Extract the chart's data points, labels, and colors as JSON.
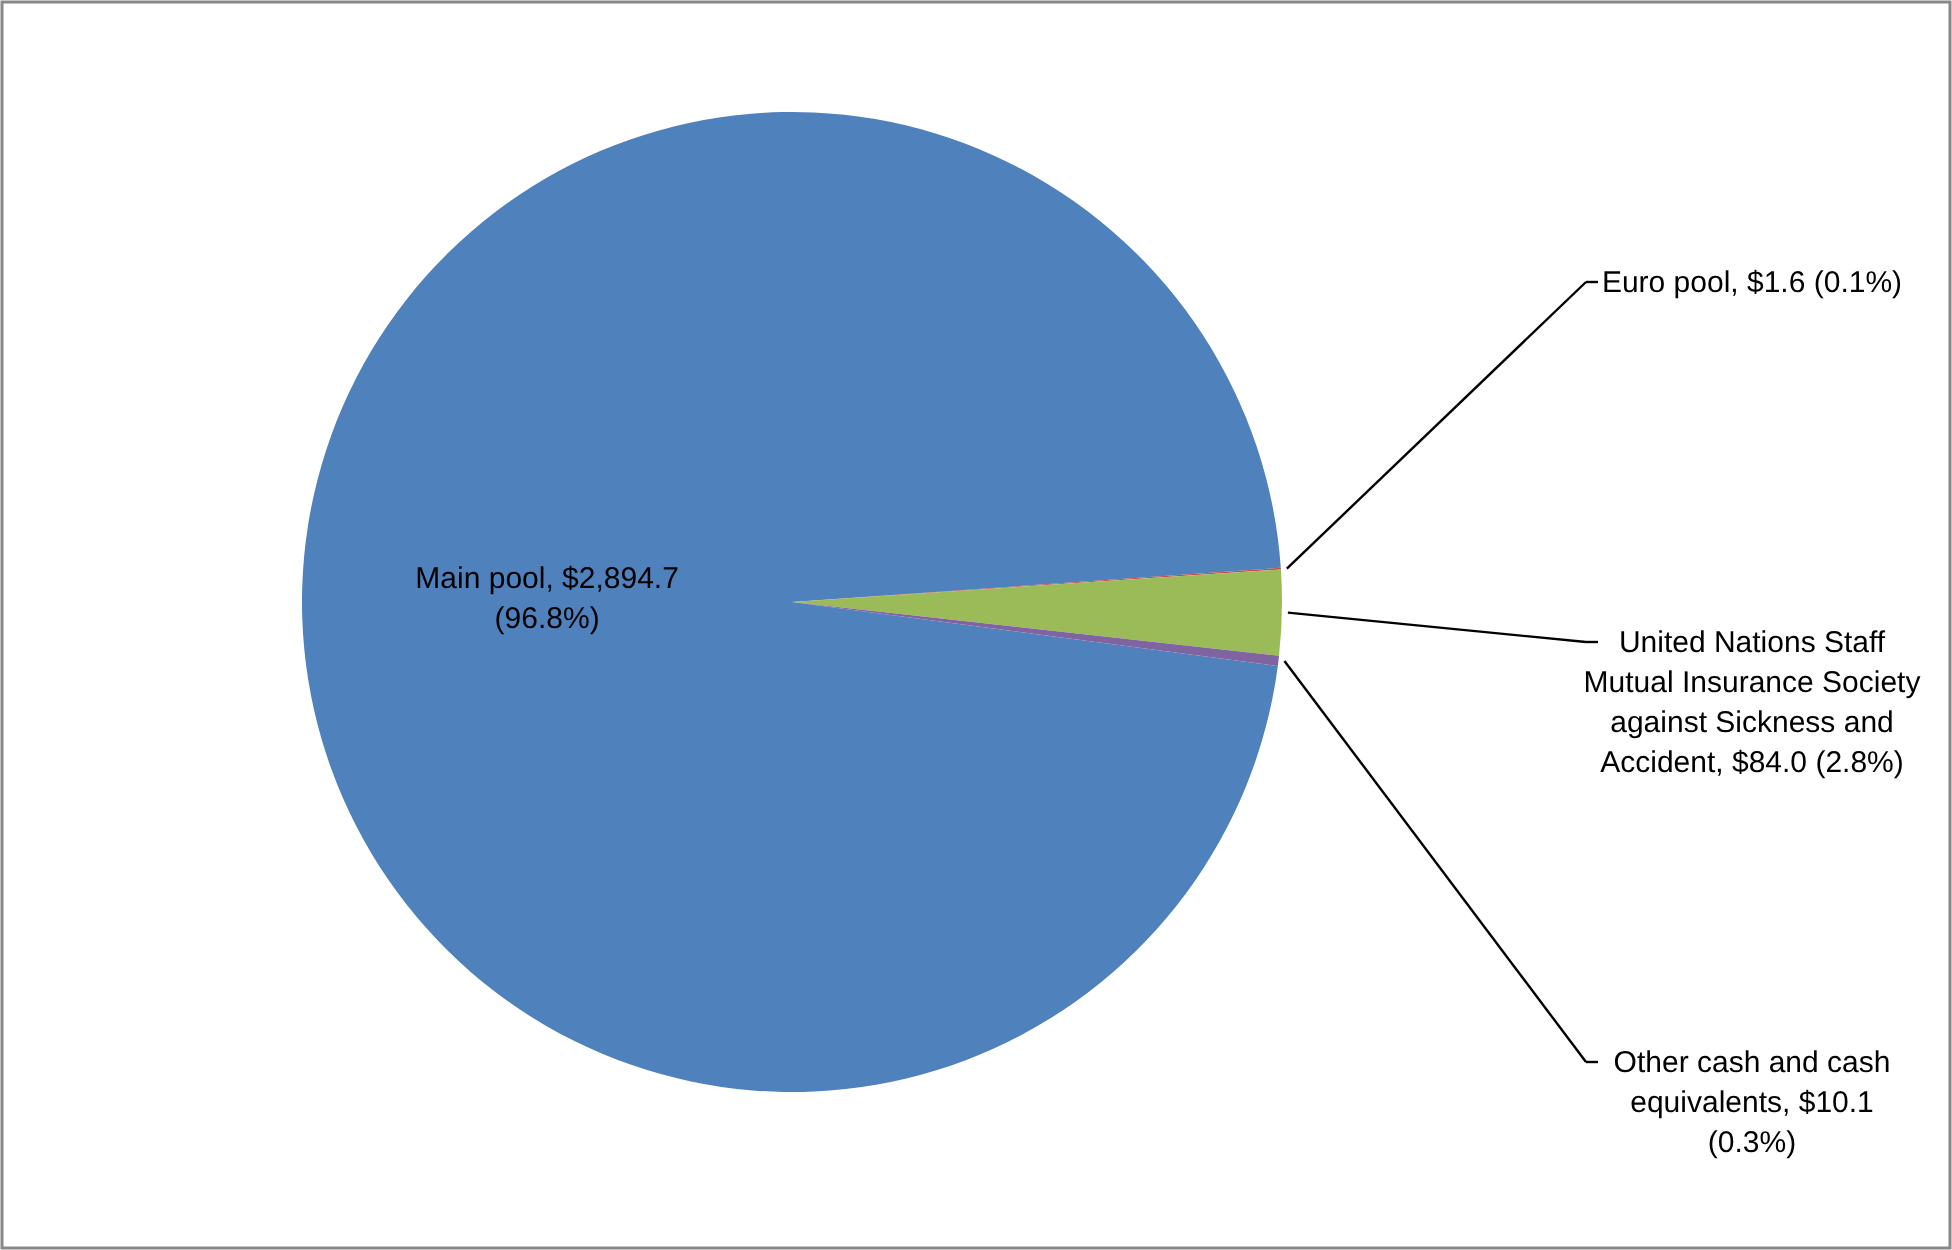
{
  "chart_data": {
    "type": "pie",
    "categories": [
      "Main pool",
      "Euro pool",
      "United Nations Staff Mutual Insurance Society against Sickness  and Accident",
      "Other cash and cash equivalents"
    ],
    "values": [
      2894.7,
      1.6,
      84.0,
      10.1
    ],
    "colors": [
      "#4f81bd",
      "#c0504d",
      "#9bbb59",
      "#8064a2"
    ],
    "value_labels": [
      "$2,894.7 (96.8%)",
      "$1.6 (0.1%)",
      "$84.0 (2.8%)",
      "$10.1 (0.3%)"
    ]
  }
}
